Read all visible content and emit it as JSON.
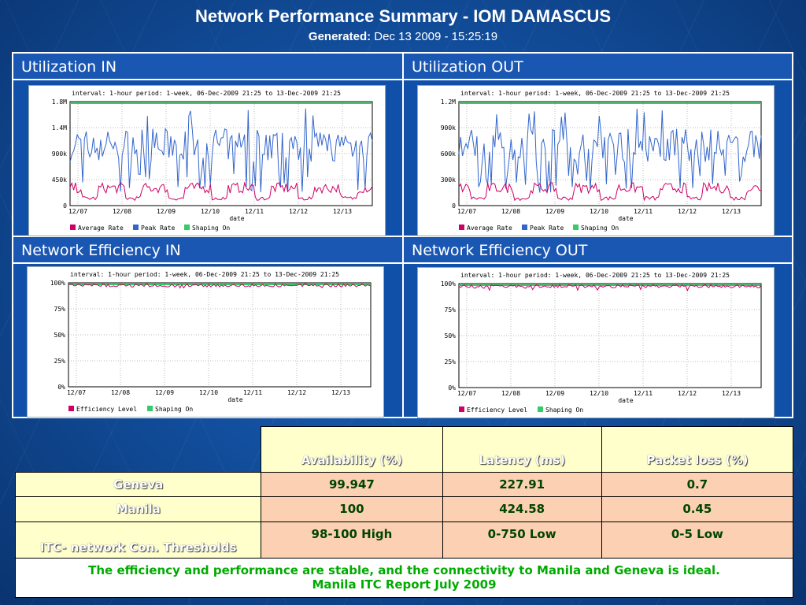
{
  "header": {
    "title": "Network Performance Summary - IOM DAMASCUS",
    "generated_label": "Generated:",
    "generated_value": "Dec 13 2009 - 15:25:19"
  },
  "panels": [
    {
      "label": "Utilization IN",
      "interval": "interval: 1-hour  period: 1-week, 06-Dec-2009 21:25 to 13-Dec-2009 21:25",
      "y_ticks": [
        "1.8M",
        "1.4M",
        "900k",
        "450k",
        "0"
      ],
      "x_ticks": [
        "12/07",
        "12/08",
        "12/09",
        "12/10",
        "12/11",
        "12/12",
        "12/13"
      ],
      "xlabel": "date",
      "legend": [
        "Average Rate",
        "Peak Rate",
        "Shaping On"
      ]
    },
    {
      "label": "Utilization OUT",
      "interval": "interval: 1-hour  period: 1-week, 06-Dec-2009 21:25 to 13-Dec-2009 21:25",
      "y_ticks": [
        "1.2M",
        "900k",
        "600k",
        "300k",
        "0"
      ],
      "x_ticks": [
        "12/07",
        "12/08",
        "12/09",
        "12/10",
        "12/11",
        "12/12",
        "12/13"
      ],
      "xlabel": "date",
      "legend": [
        "Average Rate",
        "Peak Rate",
        "Shaping On"
      ]
    },
    {
      "label": "Network Efficiency IN",
      "interval": "interval: 1-hour  period: 1-week, 06-Dec-2009 21:25 to 13-Dec-2009 21:25",
      "y_ticks": [
        "100%",
        "75%",
        "50%",
        "25%",
        "0%"
      ],
      "x_ticks": [
        "12/07",
        "12/08",
        "12/09",
        "12/10",
        "12/11",
        "12/12",
        "12/13"
      ],
      "xlabel": "date",
      "legend": [
        "Efficiency Level",
        "Shaping On"
      ]
    },
    {
      "label": "Network Efficiency OUT",
      "interval": "interval: 1-hour  period: 1-week, 06-Dec-2009 21:25 to 13-Dec-2009 21:25",
      "y_ticks": [
        "100%",
        "75%",
        "50%",
        "25%",
        "0%"
      ],
      "x_ticks": [
        "12/07",
        "12/08",
        "12/09",
        "12/10",
        "12/11",
        "12/12",
        "12/13"
      ],
      "xlabel": "date",
      "legend": [
        "Efficiency Level",
        "Shaping On"
      ]
    }
  ],
  "legend_colors": {
    "average": "#cc0066",
    "peak": "#3366cc",
    "shaping": "#33cc66",
    "efficiency": "#cc0066"
  },
  "table": {
    "headers": [
      "Availability (%)",
      "Latency (ms)",
      "Packet loss (%)"
    ],
    "rows": [
      {
        "label": "Geneva",
        "values": [
          "99.947",
          "227.91",
          "0.7"
        ]
      },
      {
        "label": "Manila",
        "values": [
          "100",
          "424.58",
          "0.45"
        ]
      },
      {
        "label": "ITC- network Con. Thresholds",
        "values": [
          "98-100 High",
          "0-750 Low",
          "0-5 Low"
        ]
      }
    ],
    "note_line1": "The efficiency and performance are stable, and the connectivity to Manila and Geneva is ideal.",
    "note_line2": "Manila ITC Report July 2009"
  }
}
